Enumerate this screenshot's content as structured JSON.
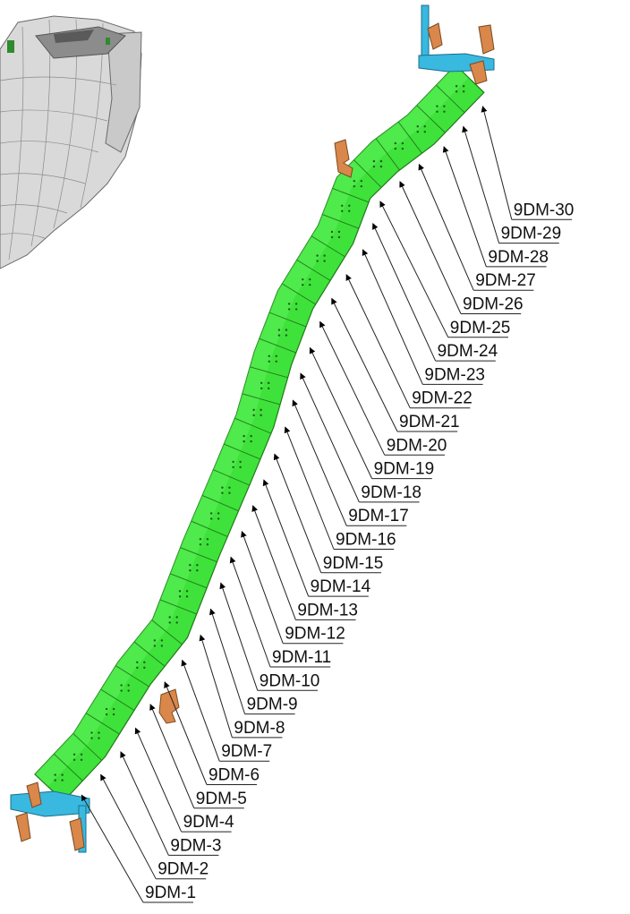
{
  "colors": {
    "segment_fill": "#3fe23a",
    "segment_edge": "#1f7a1a",
    "support_blue": "#39b8e0",
    "support_orange": "#d9874a",
    "vessel_gray": "#d8d8d8",
    "leader_line": "#222222"
  },
  "labels": [
    "9DM-1",
    "9DM-2",
    "9DM-3",
    "9DM-4",
    "9DM-5",
    "9DM-6",
    "9DM-7",
    "9DM-8",
    "9DM-9",
    "9DM-10",
    "9DM-11",
    "9DM-12",
    "9DM-13",
    "9DM-14",
    "9DM-15",
    "9DM-16",
    "9DM-17",
    "9DM-18",
    "9DM-19",
    "9DM-20",
    "9DM-21",
    "9DM-22",
    "9DM-23",
    "9DM-24",
    "9DM-25",
    "9DM-26",
    "9DM-27",
    "9DM-28",
    "9DM-29",
    "9DM-30"
  ]
}
